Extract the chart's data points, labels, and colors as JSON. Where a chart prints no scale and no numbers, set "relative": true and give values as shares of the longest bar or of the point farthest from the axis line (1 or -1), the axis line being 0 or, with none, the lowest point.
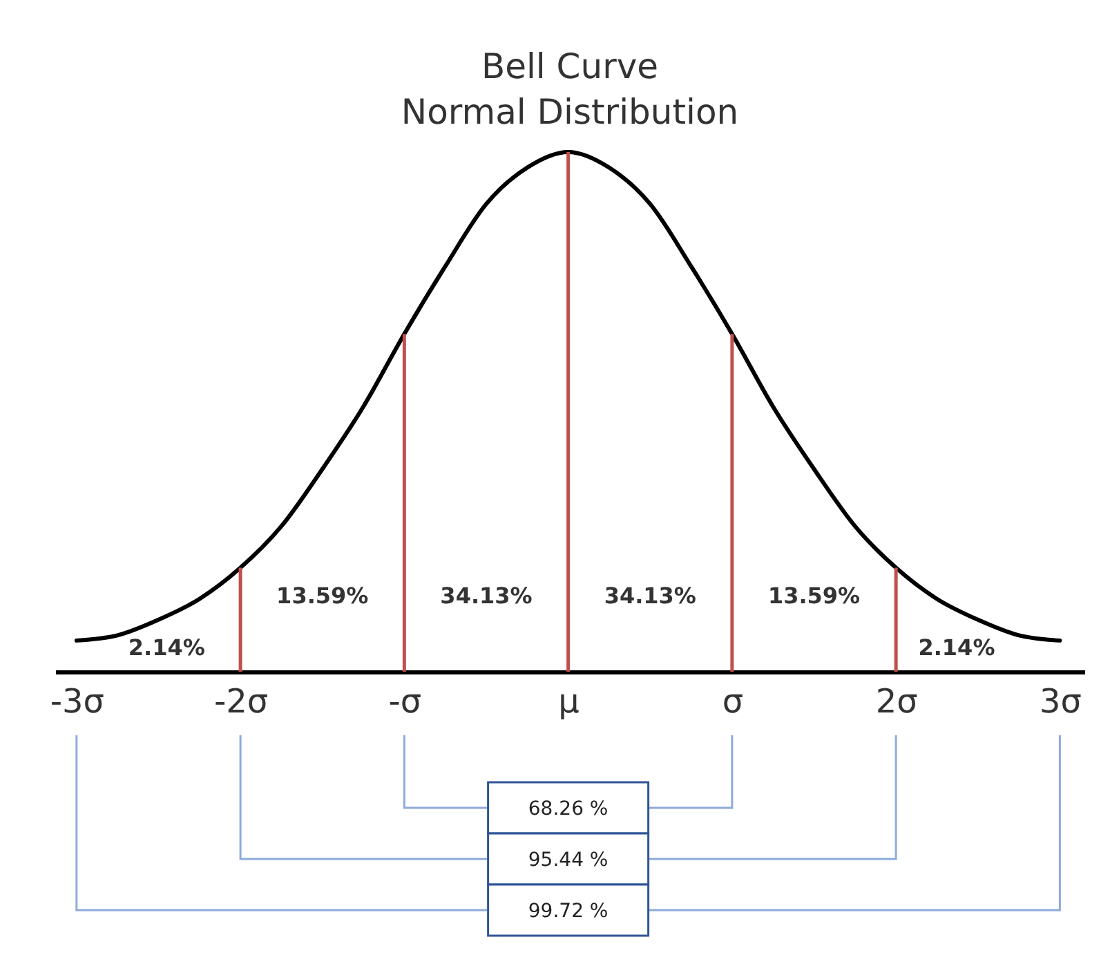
{
  "chart_data": {
    "type": "line",
    "title": "Bell Curve",
    "subtitle": "Normal Distribution",
    "relative": true,
    "xlim": [
      -3.13,
      3.15
    ],
    "xticks": [
      {
        "value": -3,
        "label": "-3σ"
      },
      {
        "value": -2,
        "label": "-2σ"
      },
      {
        "value": -1,
        "label": "-σ"
      },
      {
        "value": 0,
        "label": "μ"
      },
      {
        "value": 1,
        "label": "σ"
      },
      {
        "value": 2,
        "label": "2σ"
      },
      {
        "value": 3,
        "label": "3σ"
      }
    ],
    "series": [
      {
        "color": "#000000",
        "x": [
          -3,
          -2.75,
          -2.5,
          -2.25,
          -2,
          -1.75,
          -1.5,
          -1.25,
          -1,
          -0.75,
          -0.5,
          -0.25,
          0,
          0.25,
          0.5,
          0.75,
          1,
          1.25,
          1.5,
          1.75,
          2,
          2.25,
          2.5,
          2.75,
          3
        ],
        "values": [
          0.06,
          0.07,
          0.1,
          0.14,
          0.2,
          0.28,
          0.39,
          0.51,
          0.65,
          0.78,
          0.9,
          0.97,
          1,
          0.97,
          0.9,
          0.78,
          0.65,
          0.51,
          0.39,
          0.28,
          0.2,
          0.14,
          0.1,
          0.07,
          0.06
        ]
      }
    ],
    "ref_lines": [
      {
        "axis": "x",
        "value": -2,
        "color": "#c0504d"
      },
      {
        "axis": "x",
        "value": -1,
        "color": "#c0504d"
      },
      {
        "axis": "x",
        "value": 0,
        "color": "#c0504d"
      },
      {
        "axis": "x",
        "value": 1,
        "color": "#c0504d"
      },
      {
        "axis": "x",
        "value": 2,
        "color": "#c0504d"
      }
    ],
    "annotations": [
      "2.14%",
      "13.59%",
      "34.13%",
      "34.13%",
      "13.59%",
      "2.14%",
      "68.26 %",
      "95.44 %",
      "99.72 %"
    ]
  }
}
